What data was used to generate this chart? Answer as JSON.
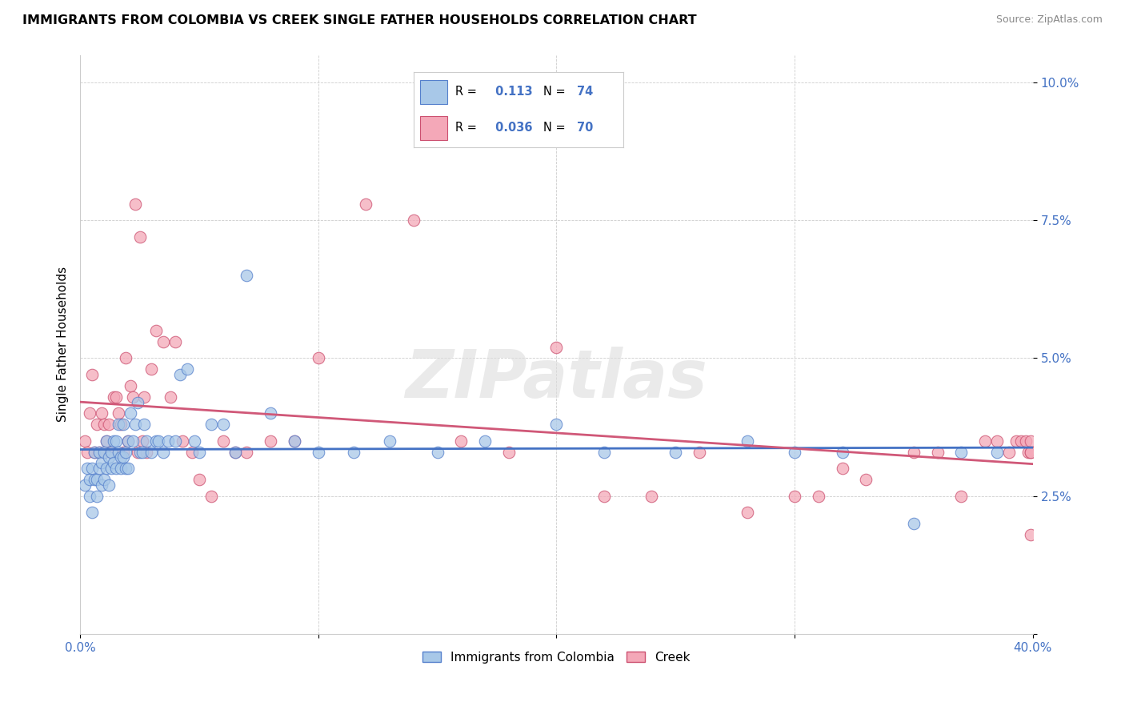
{
  "title": "IMMIGRANTS FROM COLOMBIA VS CREEK SINGLE FATHER HOUSEHOLDS CORRELATION CHART",
  "source": "Source: ZipAtlas.com",
  "ylabel": "Single Father Households",
  "xlim": [
    0.0,
    0.4
  ],
  "ylim": [
    0.0,
    0.105
  ],
  "xticks": [
    0.0,
    0.1,
    0.2,
    0.3,
    0.4
  ],
  "xticklabels": [
    "0.0%",
    "",
    "",
    "",
    "40.0%"
  ],
  "yticks": [
    0.0,
    0.025,
    0.05,
    0.075,
    0.1
  ],
  "yticklabels": [
    "",
    "2.5%",
    "5.0%",
    "7.5%",
    "10.0%"
  ],
  "colombia_R": 0.113,
  "colombia_N": 74,
  "creek_R": 0.036,
  "creek_N": 70,
  "colombia_color": "#a8c8e8",
  "creek_color": "#f4a8b8",
  "colombia_line_color": "#4472c4",
  "creek_line_color": "#d05878",
  "colombia_edge_color": "#5580cc",
  "creek_edge_color": "#cc5070",
  "watermark": "ZIPatlas",
  "colombia_x": [
    0.002,
    0.003,
    0.004,
    0.004,
    0.005,
    0.005,
    0.006,
    0.006,
    0.007,
    0.007,
    0.008,
    0.008,
    0.009,
    0.009,
    0.01,
    0.01,
    0.011,
    0.011,
    0.012,
    0.012,
    0.013,
    0.013,
    0.014,
    0.014,
    0.015,
    0.015,
    0.016,
    0.016,
    0.017,
    0.017,
    0.018,
    0.018,
    0.019,
    0.019,
    0.02,
    0.02,
    0.021,
    0.022,
    0.023,
    0.024,
    0.025,
    0.026,
    0.027,
    0.028,
    0.03,
    0.032,
    0.033,
    0.035,
    0.037,
    0.04,
    0.042,
    0.045,
    0.048,
    0.05,
    0.055,
    0.06,
    0.065,
    0.07,
    0.08,
    0.09,
    0.1,
    0.115,
    0.13,
    0.15,
    0.17,
    0.2,
    0.22,
    0.25,
    0.28,
    0.3,
    0.32,
    0.35,
    0.37,
    0.385
  ],
  "colombia_y": [
    0.027,
    0.03,
    0.025,
    0.028,
    0.022,
    0.03,
    0.028,
    0.033,
    0.025,
    0.028,
    0.03,
    0.033,
    0.027,
    0.031,
    0.028,
    0.033,
    0.03,
    0.035,
    0.027,
    0.032,
    0.03,
    0.033,
    0.031,
    0.035,
    0.03,
    0.035,
    0.033,
    0.038,
    0.03,
    0.032,
    0.032,
    0.038,
    0.03,
    0.033,
    0.03,
    0.035,
    0.04,
    0.035,
    0.038,
    0.042,
    0.033,
    0.033,
    0.038,
    0.035,
    0.033,
    0.035,
    0.035,
    0.033,
    0.035,
    0.035,
    0.047,
    0.048,
    0.035,
    0.033,
    0.038,
    0.038,
    0.033,
    0.065,
    0.04,
    0.035,
    0.033,
    0.033,
    0.035,
    0.033,
    0.035,
    0.038,
    0.033,
    0.033,
    0.035,
    0.033,
    0.033,
    0.02,
    0.033,
    0.033
  ],
  "creek_x": [
    0.002,
    0.003,
    0.004,
    0.005,
    0.006,
    0.007,
    0.008,
    0.009,
    0.01,
    0.01,
    0.011,
    0.012,
    0.013,
    0.014,
    0.015,
    0.016,
    0.017,
    0.018,
    0.019,
    0.02,
    0.021,
    0.022,
    0.023,
    0.024,
    0.025,
    0.026,
    0.027,
    0.028,
    0.03,
    0.032,
    0.035,
    0.038,
    0.04,
    0.043,
    0.047,
    0.05,
    0.055,
    0.06,
    0.065,
    0.07,
    0.08,
    0.09,
    0.1,
    0.12,
    0.14,
    0.16,
    0.18,
    0.2,
    0.22,
    0.24,
    0.26,
    0.28,
    0.3,
    0.31,
    0.32,
    0.33,
    0.35,
    0.36,
    0.37,
    0.38,
    0.385,
    0.39,
    0.393,
    0.395,
    0.397,
    0.398,
    0.399,
    0.399,
    0.399,
    0.399
  ],
  "creek_y": [
    0.035,
    0.033,
    0.04,
    0.047,
    0.033,
    0.038,
    0.033,
    0.04,
    0.038,
    0.033,
    0.035,
    0.038,
    0.033,
    0.043,
    0.043,
    0.04,
    0.038,
    0.033,
    0.05,
    0.035,
    0.045,
    0.043,
    0.078,
    0.033,
    0.072,
    0.035,
    0.043,
    0.033,
    0.048,
    0.055,
    0.053,
    0.043,
    0.053,
    0.035,
    0.033,
    0.028,
    0.025,
    0.035,
    0.033,
    0.033,
    0.035,
    0.035,
    0.05,
    0.078,
    0.075,
    0.035,
    0.033,
    0.052,
    0.025,
    0.025,
    0.033,
    0.022,
    0.025,
    0.025,
    0.03,
    0.028,
    0.033,
    0.033,
    0.025,
    0.035,
    0.035,
    0.033,
    0.035,
    0.035,
    0.035,
    0.033,
    0.033,
    0.035,
    0.033,
    0.018
  ]
}
